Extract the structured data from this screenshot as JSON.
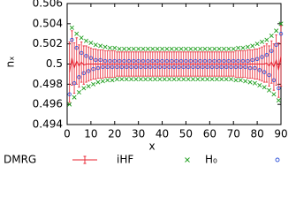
{
  "chart_data": {
    "type": "scatter",
    "xlabel": "x",
    "ylabel": "nₓ",
    "xlim": [
      0,
      90
    ],
    "ylim": [
      0.494,
      0.506
    ],
    "xticks": [
      0,
      10,
      20,
      30,
      40,
      50,
      60,
      70,
      80,
      90
    ],
    "yticks": [
      0.494,
      0.496,
      0.498,
      0.5,
      0.502,
      0.504,
      0.506
    ],
    "legend": "bottom",
    "x": [
      1,
      2,
      3,
      4,
      5,
      6,
      7,
      8,
      9,
      10,
      11,
      12,
      13,
      14,
      15,
      16,
      17,
      18,
      19,
      20,
      21,
      22,
      23,
      24,
      25,
      26,
      27,
      28,
      29,
      30,
      31,
      32,
      33,
      34,
      35,
      36,
      37,
      38,
      39,
      40,
      41,
      42,
      43,
      44,
      45,
      46,
      47,
      48,
      49,
      50,
      51,
      52,
      53,
      54,
      55,
      56,
      57,
      58,
      59,
      60,
      61,
      62,
      63,
      64,
      65,
      66,
      67,
      68,
      69,
      70,
      71,
      72,
      73,
      74,
      75,
      76,
      77,
      78,
      79,
      80,
      81,
      82,
      83,
      84,
      85,
      86,
      87,
      88,
      89,
      90
    ],
    "series": [
      {
        "name": "DMRG",
        "color": "#e8202e",
        "marker": "errorbar-line",
        "values": [
          0.4992,
          0.5006,
          0.4996,
          0.5003,
          0.4998,
          0.5002,
          0.4999,
          0.5,
          0.5,
          0.5,
          0.5,
          0.5,
          0.5,
          0.5,
          0.5,
          0.5,
          0.5,
          0.5,
          0.5,
          0.5,
          0.5,
          0.5,
          0.5,
          0.5,
          0.5,
          0.5,
          0.5,
          0.5,
          0.5,
          0.5,
          0.5,
          0.5,
          0.5,
          0.5,
          0.5,
          0.5,
          0.5,
          0.5,
          0.5,
          0.5,
          0.5,
          0.5,
          0.5,
          0.5,
          0.5,
          0.5,
          0.5,
          0.5,
          0.5,
          0.5,
          0.5,
          0.5,
          0.5,
          0.5,
          0.5,
          0.5,
          0.5,
          0.5,
          0.5,
          0.5,
          0.5,
          0.5,
          0.5,
          0.5,
          0.5,
          0.5,
          0.5,
          0.5,
          0.5,
          0.5,
          0.5,
          0.5,
          0.5,
          0.5,
          0.5,
          0.5,
          0.5,
          0.5,
          0.5,
          0.5,
          0.5,
          0.5,
          0.5,
          0.5001,
          0.4998,
          0.5002,
          0.4997,
          0.5004,
          0.4994,
          0.5008
        ],
        "errors": [
          0.003,
          0.0027,
          0.0025,
          0.0023,
          0.0021,
          0.002,
          0.0019,
          0.0018,
          0.0017,
          0.0016,
          0.0015,
          0.0015,
          0.0014,
          0.0014,
          0.0014,
          0.0013,
          0.0013,
          0.0013,
          0.0013,
          0.0013,
          0.0012,
          0.0012,
          0.0012,
          0.0012,
          0.0012,
          0.0012,
          0.0012,
          0.0012,
          0.0012,
          0.0012,
          0.0012,
          0.0012,
          0.0012,
          0.0012,
          0.0012,
          0.0012,
          0.0012,
          0.0012,
          0.0012,
          0.0012,
          0.0012,
          0.0012,
          0.0012,
          0.0012,
          0.0012,
          0.0012,
          0.0012,
          0.0012,
          0.0012,
          0.0012,
          0.0012,
          0.0012,
          0.0012,
          0.0012,
          0.0012,
          0.0012,
          0.0012,
          0.0012,
          0.0012,
          0.0012,
          0.0012,
          0.0012,
          0.0012,
          0.0012,
          0.0012,
          0.0012,
          0.0012,
          0.0012,
          0.0012,
          0.0012,
          0.0013,
          0.0013,
          0.0013,
          0.0013,
          0.0013,
          0.0014,
          0.0014,
          0.0014,
          0.0015,
          0.0015,
          0.0016,
          0.0017,
          0.0018,
          0.0019,
          0.002,
          0.0021,
          0.0023,
          0.0025,
          0.0027,
          0.003
        ]
      },
      {
        "name": "iHF",
        "color": "#1e9e1e",
        "marker": "x",
        "values": [
          0.496,
          0.5036,
          0.4967,
          0.503,
          0.4972,
          0.5026,
          0.4976,
          0.5023,
          0.4978,
          0.5021,
          0.498,
          0.5019,
          0.4982,
          0.5018,
          0.4983,
          0.5017,
          0.4984,
          0.5016,
          0.4984,
          0.5016,
          0.4985,
          0.5015,
          0.4985,
          0.5015,
          0.4985,
          0.5015,
          0.4985,
          0.5015,
          0.4985,
          0.5015,
          0.4985,
          0.5015,
          0.4985,
          0.5015,
          0.4985,
          0.5015,
          0.4985,
          0.5015,
          0.4985,
          0.5015,
          0.4985,
          0.5015,
          0.4985,
          0.5015,
          0.4985,
          0.5015,
          0.4985,
          0.5015,
          0.4985,
          0.5015,
          0.4985,
          0.5015,
          0.4985,
          0.5015,
          0.4985,
          0.5015,
          0.4985,
          0.5015,
          0.4985,
          0.5015,
          0.4985,
          0.5015,
          0.4985,
          0.5015,
          0.4985,
          0.5015,
          0.4985,
          0.5015,
          0.4985,
          0.5015,
          0.4984,
          0.5016,
          0.4984,
          0.5016,
          0.4983,
          0.5017,
          0.4982,
          0.5018,
          0.4981,
          0.502,
          0.4979,
          0.5022,
          0.4977,
          0.5024,
          0.4974,
          0.5028,
          0.497,
          0.5033,
          0.4964,
          0.504
        ]
      },
      {
        "name": "H₀",
        "color": "#2b4fd8",
        "marker": "circle",
        "values": [
          0.497,
          0.5024,
          0.4981,
          0.5016,
          0.4987,
          0.5011,
          0.4991,
          0.5008,
          0.4993,
          0.5006,
          0.4995,
          0.5004,
          0.4996,
          0.5004,
          0.4997,
          0.5003,
          0.4997,
          0.5003,
          0.4997,
          0.5003,
          0.4997,
          0.5003,
          0.4997,
          0.5003,
          0.4997,
          0.5003,
          0.4997,
          0.5003,
          0.4997,
          0.5003,
          0.4997,
          0.5003,
          0.4997,
          0.5003,
          0.4997,
          0.5003,
          0.4997,
          0.5003,
          0.4997,
          0.5003,
          0.4997,
          0.5003,
          0.4997,
          0.5003,
          0.4997,
          0.5003,
          0.4997,
          0.5003,
          0.4997,
          0.5003,
          0.4997,
          0.5003,
          0.4997,
          0.5003,
          0.4997,
          0.5003,
          0.4997,
          0.5003,
          0.4997,
          0.5003,
          0.4997,
          0.5003,
          0.4997,
          0.5003,
          0.4997,
          0.5003,
          0.4997,
          0.5003,
          0.4997,
          0.5003,
          0.4997,
          0.5003,
          0.4997,
          0.5003,
          0.4997,
          0.5003,
          0.4996,
          0.5004,
          0.4996,
          0.5005,
          0.4994,
          0.5007,
          0.4992,
          0.5009,
          0.4989,
          0.5013,
          0.4984,
          0.5019,
          0.4976,
          0.503
        ]
      }
    ]
  }
}
